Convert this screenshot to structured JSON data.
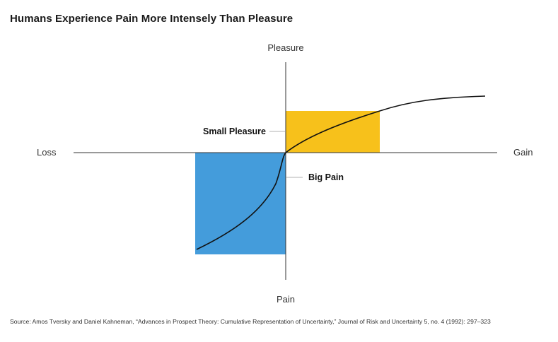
{
  "title": "Humans Experience Pain More Intensely Than Pleasure",
  "source": "Source: Amos Tversky and Daniel Kahneman, “Advances in Prospect Theory: Cumulative Representation of Uncertainty,” Journal of Risk and Uncertainty 5, no. 4 (1992): 297–323",
  "axes": {
    "top": "Pleasure",
    "bottom": "Pain",
    "left": "Loss",
    "right": "Gain"
  },
  "callouts": {
    "small_pleasure": "Small Pleasure",
    "big_pain": "Big Pain"
  },
  "colors": {
    "pleasure_box": "#F7C11B",
    "pain_box": "#449CDB",
    "curve": "#111111",
    "axis": "#333333"
  }
}
